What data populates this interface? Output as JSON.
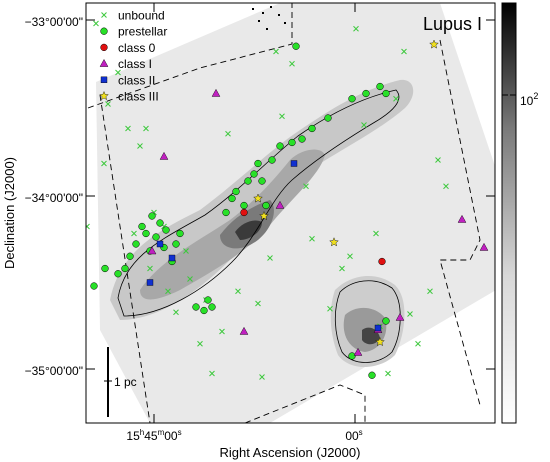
{
  "chart_data": {
    "type": "scatter",
    "title": "Lupus I",
    "xlabel": "Right Ascension (J2000)",
    "ylabel": "Declination (J2000)",
    "x_ticks": [
      {
        "h": "15",
        "m": "45",
        "s": "00",
        "sfx": "s"
      },
      {
        "h": "",
        "m": "",
        "s": "00",
        "sfx": "s"
      }
    ],
    "y_ticks": [
      "−33°00'00\"",
      "−34°00'00\"",
      "−35°00'00\""
    ],
    "colorbar": {
      "label": "10",
      "exp": "2",
      "scale": "log"
    },
    "scale_bar": {
      "label": "1 pc"
    },
    "legend": [
      {
        "name": "unbound",
        "marker": "cross",
        "color": "#3cc83c"
      },
      {
        "name": "prestellar",
        "marker": "circle",
        "color": "#28e028"
      },
      {
        "name": "class 0",
        "marker": "circle",
        "color": "#e01010"
      },
      {
        "name": "class I",
        "marker": "triangle",
        "color": "#c020c0"
      },
      {
        "name": "class II",
        "marker": "square",
        "color": "#1030d0"
      },
      {
        "name": "class III",
        "marker": "star",
        "color": "#f0e020"
      }
    ],
    "sources": {
      "unbound": [
        [
          20,
          -33.02
        ],
        [
          46,
          -33.35
        ],
        [
          58,
          -33.55
        ],
        [
          66,
          -33.95
        ],
        [
          70,
          -33.73
        ],
        [
          75,
          -33.28
        ],
        [
          87,
          -34.18
        ],
        [
          96,
          -33.02
        ],
        [
          104,
          -33.82
        ],
        [
          108,
          -33.48
        ],
        [
          118,
          -33.3
        ],
        [
          128,
          -33.62
        ],
        [
          140,
          -33.72
        ],
        [
          146,
          -33.62
        ],
        [
          154,
          -34.1
        ],
        [
          164,
          -34.18
        ],
        [
          168,
          -34.55
        ],
        [
          176,
          -34.67
        ],
        [
          186,
          -34.32
        ],
        [
          200,
          -34.85
        ],
        [
          206,
          -34.6
        ],
        [
          212,
          -35.02
        ],
        [
          228,
          -33.65
        ],
        [
          238,
          -34.55
        ],
        [
          258,
          -34.62
        ],
        [
          262,
          -35.04
        ],
        [
          270,
          -34.36
        ],
        [
          276,
          -33.18
        ],
        [
          282,
          -33.55
        ],
        [
          292,
          -33.25
        ],
        [
          306,
          -33.95
        ],
        [
          312,
          -34.25
        ],
        [
          330,
          -34.65
        ],
        [
          342,
          -34.42
        ],
        [
          350,
          -34.35
        ],
        [
          356,
          -33.05
        ],
        [
          364,
          -33.6
        ],
        [
          376,
          -34.22
        ],
        [
          380,
          -34.75
        ],
        [
          388,
          -35.02
        ],
        [
          396,
          -33.45
        ],
        [
          404,
          -33.18
        ],
        [
          410,
          -34.68
        ],
        [
          418,
          -34.85
        ],
        [
          430,
          -34.55
        ],
        [
          438,
          -33.8
        ],
        [
          446,
          -33.95
        ],
        [
          134,
          -34.22
        ],
        [
          150,
          -34.42
        ],
        [
          190,
          -34.48
        ],
        [
          222,
          -34.78
        ]
      ],
      "prestellar": [
        [
          94,
          -34.52
        ],
        [
          105,
          -34.42
        ],
        [
          118,
          -34.45
        ],
        [
          125,
          -34.42
        ],
        [
          130,
          -34.35
        ],
        [
          136,
          -34.28
        ],
        [
          142,
          -34.18
        ],
        [
          146,
          -34.22
        ],
        [
          150,
          -34.32
        ],
        [
          152,
          -34.12
        ],
        [
          156,
          -34.24
        ],
        [
          160,
          -34.16
        ],
        [
          164,
          -34.3
        ],
        [
          166,
          -34.2
        ],
        [
          172,
          -34.38
        ],
        [
          176,
          -34.28
        ],
        [
          180,
          -34.22
        ],
        [
          196,
          -34.64
        ],
        [
          204,
          -34.66
        ],
        [
          208,
          -34.6
        ],
        [
          226,
          -34.1
        ],
        [
          232,
          -34.02
        ],
        [
          236,
          -33.98
        ],
        [
          244,
          -34.06
        ],
        [
          248,
          -33.92
        ],
        [
          254,
          -33.88
        ],
        [
          258,
          -33.82
        ],
        [
          262,
          -33.92
        ],
        [
          266,
          -34.06
        ],
        [
          272,
          -33.8
        ],
        [
          280,
          -33.72
        ],
        [
          292,
          -33.7
        ],
        [
          302,
          -33.68
        ],
        [
          312,
          -33.62
        ],
        [
          328,
          -33.56
        ],
        [
          352,
          -33.45
        ],
        [
          366,
          -33.42
        ],
        [
          380,
          -33.38
        ],
        [
          386,
          -33.42
        ],
        [
          296,
          -33.15
        ],
        [
          372,
          -35.03
        ],
        [
          352,
          -34.92
        ],
        [
          386,
          -34.72
        ],
        [
          212,
          -34.64
        ]
      ],
      "class_0": [
        [
          244,
          -34.1
        ],
        [
          382,
          -34.38
        ]
      ],
      "class_I": [
        [
          216,
          -33.42
        ],
        [
          164,
          -33.78
        ],
        [
          152,
          -34.32
        ],
        [
          244,
          -34.78
        ],
        [
          280,
          -34.06
        ],
        [
          462,
          -34.14
        ],
        [
          484,
          -34.3
        ],
        [
          358,
          -34.9
        ],
        [
          400,
          -34.7
        ],
        [
          378,
          -34.77
        ]
      ],
      "class_II": [
        [
          294,
          -33.82
        ],
        [
          160,
          -34.28
        ],
        [
          172,
          -34.36
        ],
        [
          150,
          -34.5
        ],
        [
          378,
          -34.76
        ]
      ],
      "class_III": [
        [
          434,
          -33.14
        ],
        [
          334,
          -34.27
        ],
        [
          258,
          -34.02
        ],
        [
          264,
          -34.12
        ],
        [
          380,
          -34.84
        ]
      ]
    }
  }
}
